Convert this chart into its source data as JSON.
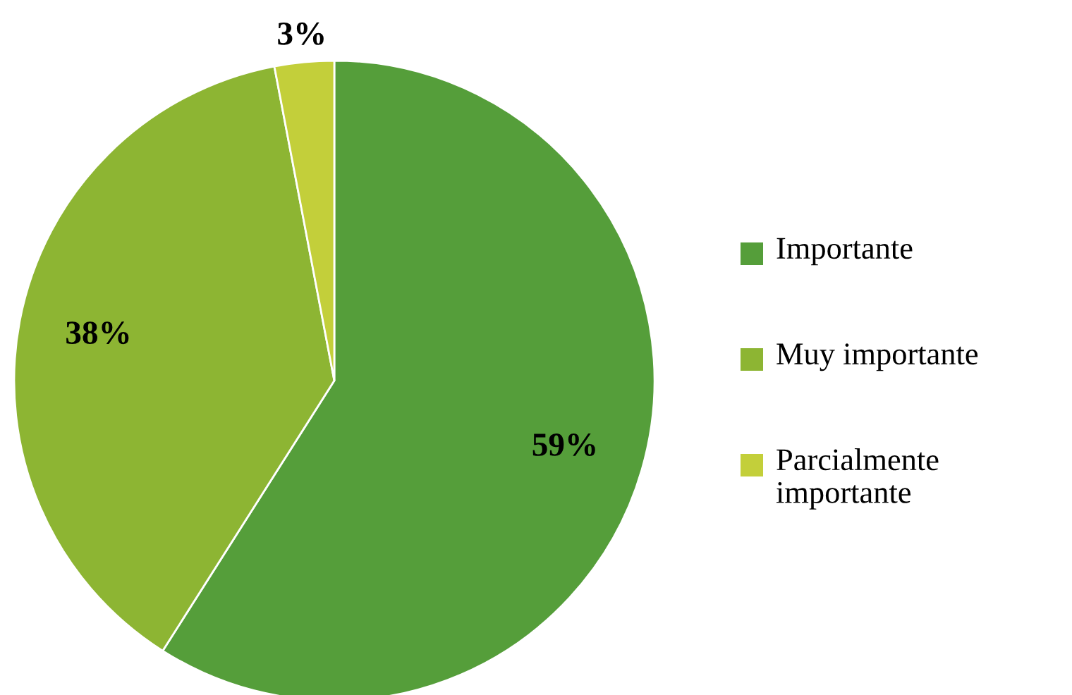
{
  "chart_data": {
    "type": "pie",
    "categories": [
      "Importante",
      "Muy importante",
      "Parcialmente importante"
    ],
    "values": [
      59,
      38,
      3
    ],
    "colors": [
      "#559e3a",
      "#8db533",
      "#c3cf3a"
    ],
    "value_labels": [
      "59%",
      "38%",
      "3%"
    ],
    "legend": "right"
  }
}
